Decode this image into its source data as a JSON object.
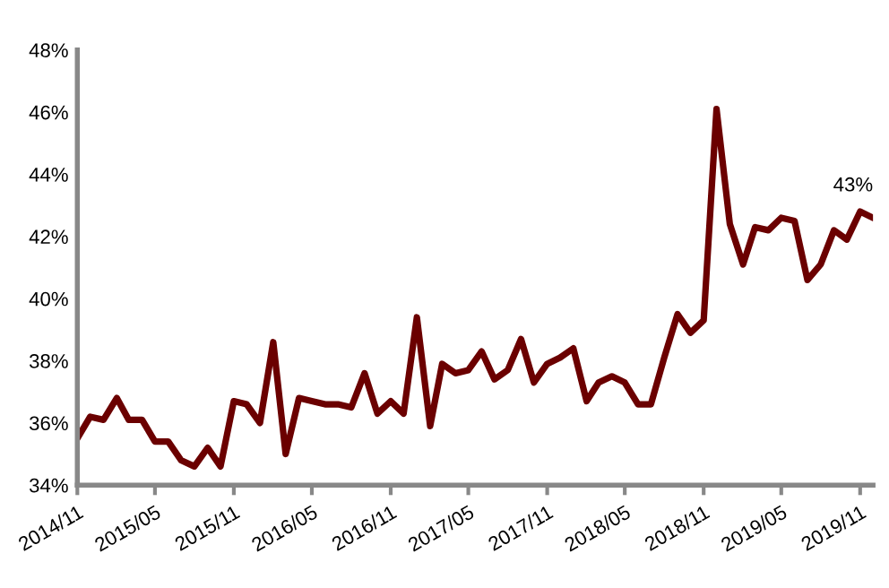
{
  "chart_data": {
    "type": "line",
    "x": [
      "2014-11",
      "2014-12",
      "2015-01",
      "2015-02",
      "2015-03",
      "2015-04",
      "2015-05",
      "2015-06",
      "2015-07",
      "2015-08",
      "2015-09",
      "2015-10",
      "2015-11",
      "2015-12",
      "2016-01",
      "2016-02",
      "2016-03",
      "2016-04",
      "2016-05",
      "2016-06",
      "2016-07",
      "2016-08",
      "2016-09",
      "2016-10",
      "2016-11",
      "2016-12",
      "2017-01",
      "2017-02",
      "2017-03",
      "2017-04",
      "2017-05",
      "2017-06",
      "2017-07",
      "2017-08",
      "2017-09",
      "2017-10",
      "2017-11",
      "2017-12",
      "2018-01",
      "2018-02",
      "2018-03",
      "2018-04",
      "2018-05",
      "2018-06",
      "2018-07",
      "2018-08",
      "2018-09",
      "2018-10",
      "2018-11",
      "2018-12",
      "2019-01",
      "2019-02",
      "2019-03",
      "2019-04",
      "2019-05",
      "2019-06",
      "2019-07",
      "2019-08",
      "2019-09",
      "2019-10",
      "2019-11",
      "2019-12"
    ],
    "series": [
      {
        "color": "#6b0000",
        "values": [
          35.5,
          36.2,
          36.1,
          36.8,
          36.1,
          36.1,
          35.4,
          35.4,
          34.8,
          34.6,
          35.2,
          34.6,
          36.7,
          36.6,
          36.0,
          38.6,
          35.0,
          36.8,
          36.7,
          36.6,
          36.6,
          36.5,
          37.6,
          36.3,
          36.7,
          36.3,
          39.4,
          35.9,
          37.9,
          37.6,
          37.7,
          38.3,
          37.4,
          37.7,
          38.7,
          37.3,
          37.9,
          38.1,
          38.4,
          36.7,
          37.3,
          37.5,
          37.3,
          36.6,
          36.6,
          38.1,
          39.5,
          38.9,
          39.3,
          46.1,
          42.4,
          41.1,
          42.3,
          42.2,
          42.6,
          42.5,
          40.6,
          41.1,
          42.2,
          41.9,
          42.8,
          42.6
        ]
      }
    ],
    "ylim": [
      34,
      48
    ],
    "yticks": [
      {
        "value": 34,
        "label": "34%"
      },
      {
        "value": 36,
        "label": "36%"
      },
      {
        "value": 38,
        "label": "38%"
      },
      {
        "value": 40,
        "label": "40%"
      },
      {
        "value": 42,
        "label": "42%"
      },
      {
        "value": 44,
        "label": "44%"
      },
      {
        "value": 46,
        "label": "46%"
      },
      {
        "value": 48,
        "label": "48%"
      }
    ],
    "xlim": [
      "2014-11",
      "2019-12"
    ],
    "xticks": [
      {
        "value": "2014-11",
        "label": "2014/11"
      },
      {
        "value": "2015-05",
        "label": "2015/05"
      },
      {
        "value": "2015-11",
        "label": "2015/11"
      },
      {
        "value": "2016-05",
        "label": "2016/05"
      },
      {
        "value": "2016-11",
        "label": "2016/11"
      },
      {
        "value": "2017-05",
        "label": "2017/05"
      },
      {
        "value": "2017-11",
        "label": "2017/11"
      },
      {
        "value": "2018-05",
        "label": "2018/05"
      },
      {
        "value": "2018-11",
        "label": "2018/11"
      },
      {
        "value": "2019-05",
        "label": "2019/05"
      },
      {
        "value": "2019-11",
        "label": "2019/11"
      }
    ],
    "annotations": [
      {
        "text": "43%",
        "x": "2019-12",
        "y": 42.6
      }
    ],
    "grid": false,
    "marker": "none",
    "line_style": "solid"
  }
}
